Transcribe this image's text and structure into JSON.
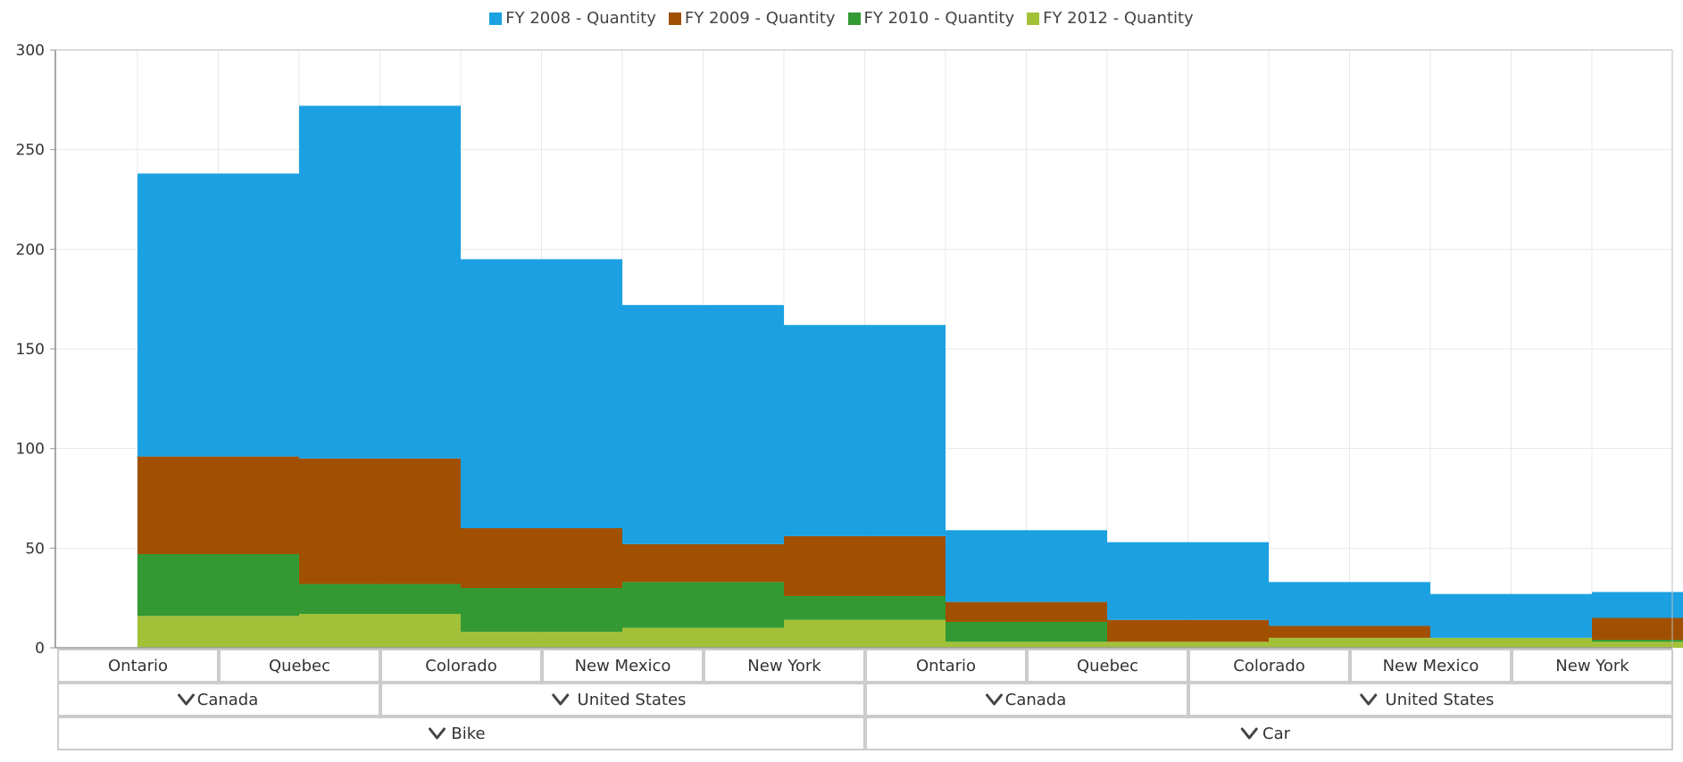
{
  "legend": [
    {
      "label": "FY 2008 - Quantity",
      "color": "#1ba1e2"
    },
    {
      "label": "FY 2009 - Quantity",
      "color": "#a05000"
    },
    {
      "label": "FY 2010 - Quantity",
      "color": "#339933"
    },
    {
      "label": "FY 2012 - Quantity",
      "color": "#a2c139"
    }
  ],
  "chart_data": {
    "type": "area",
    "subtype": "stacked-step",
    "title": "",
    "xlabel": "",
    "ylabel": "",
    "ylim": [
      0,
      300
    ],
    "yticks": [
      0,
      50,
      100,
      150,
      200,
      250,
      300
    ],
    "grid": true,
    "legend_position": "top-center",
    "categories": [
      "Ontario",
      "Quebec",
      "Colorado",
      "New Mexico",
      "New York",
      "Ontario",
      "Quebec",
      "Colorado",
      "New Mexico",
      "New York"
    ],
    "country_groups": [
      {
        "label": "Canada",
        "span": 2
      },
      {
        "label": "United States",
        "span": 3
      },
      {
        "label": "Canada",
        "span": 2
      },
      {
        "label": "United States",
        "span": 3
      }
    ],
    "product_groups": [
      {
        "label": "Bike",
        "span": 5
      },
      {
        "label": "Car",
        "span": 5
      }
    ],
    "series": [
      {
        "name": "FY 2008 - Quantity",
        "color": "#1ba1e2",
        "values": [
          142,
          177,
          135,
          120,
          106,
          36,
          39,
          22,
          22,
          13
        ]
      },
      {
        "name": "FY 2009 - Quantity",
        "color": "#a05000",
        "values": [
          49,
          63,
          30,
          19,
          30,
          10,
          11,
          6,
          0,
          11
        ]
      },
      {
        "name": "FY 2010 - Quantity",
        "color": "#339933",
        "values": [
          31,
          15,
          22,
          23,
          12,
          10,
          0,
          0,
          0,
          1
        ]
      },
      {
        "name": "FY 2012 - Quantity",
        "color": "#a2c139",
        "values": [
          16,
          17,
          8,
          10,
          14,
          3,
          3,
          5,
          5,
          3
        ]
      }
    ]
  }
}
